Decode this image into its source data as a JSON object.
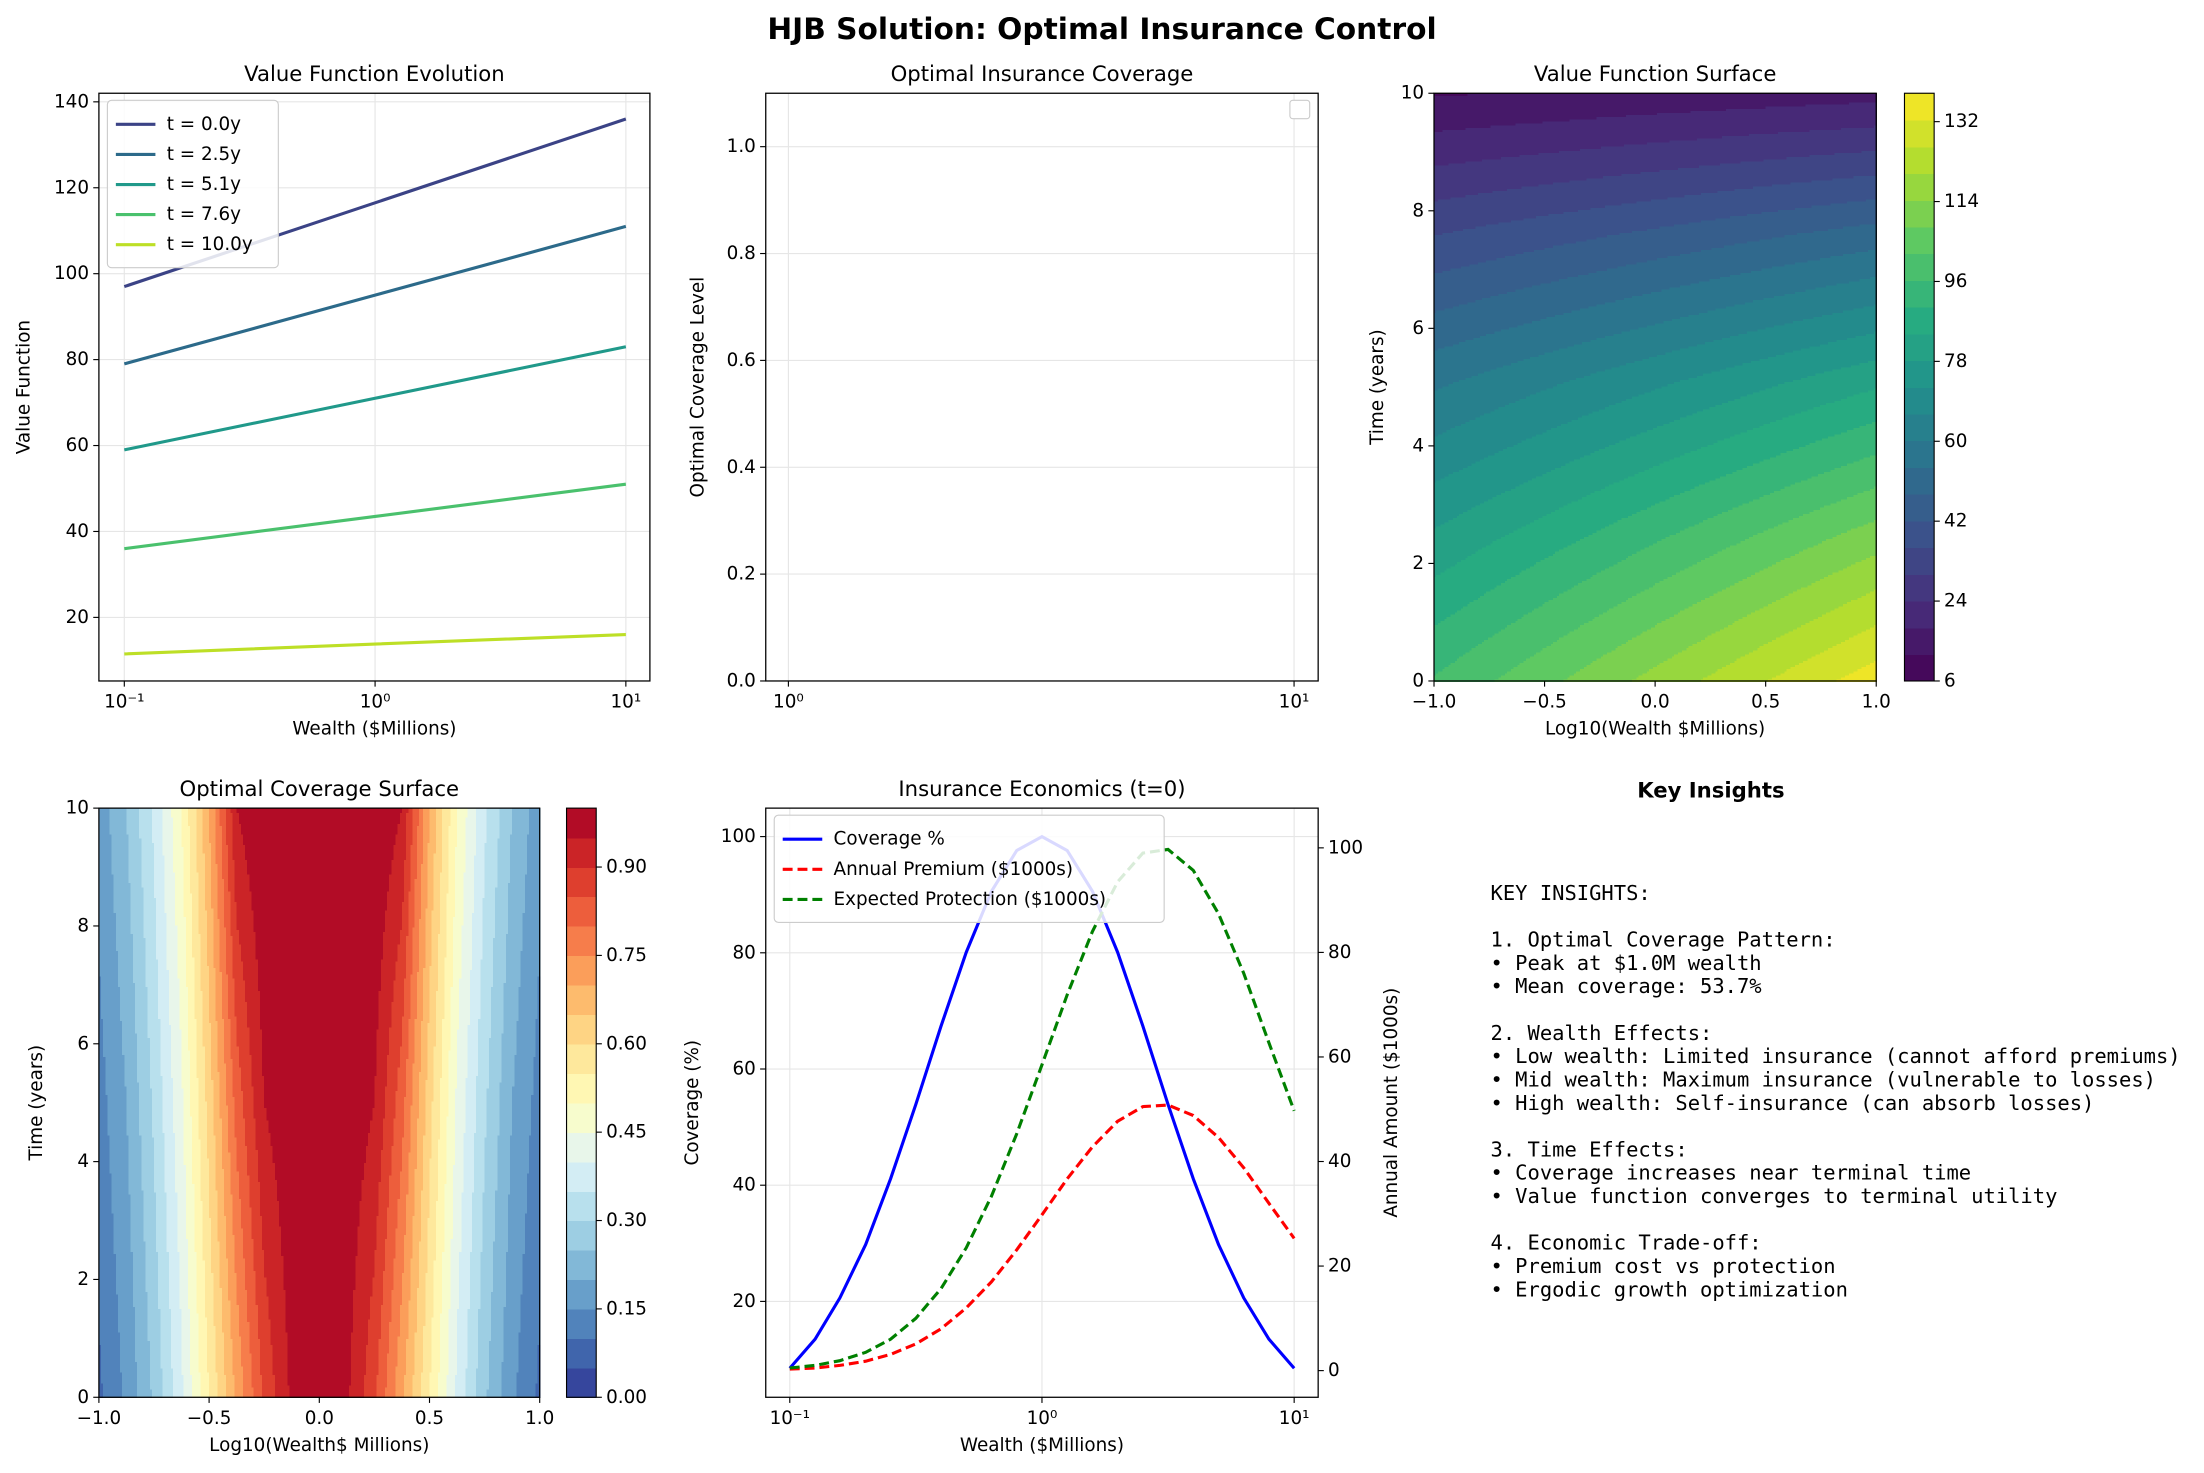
{
  "title": "HJB Solution: Optimal Insurance Control",
  "chart_data": [
    {
      "type": "line",
      "title": "Value Function Evolution",
      "xlabel": "Wealth ($Millions)",
      "ylabel": "Value Function",
      "xscale": "log",
      "grid": true,
      "legend": "upper left",
      "x": [
        0.1,
        1,
        10
      ],
      "series": [
        {
          "name": "t = 0.0y",
          "color": "#3b4386",
          "values": [
            97,
            116.5,
            136
          ]
        },
        {
          "name": "t = 2.5y",
          "color": "#2c6a8a",
          "values": [
            79,
            95,
            111
          ]
        },
        {
          "name": "t = 5.1y",
          "color": "#20998a",
          "values": [
            59,
            71,
            83
          ]
        },
        {
          "name": "t = 7.6y",
          "color": "#4ac16d",
          "values": [
            36,
            43.5,
            51
          ]
        },
        {
          "name": "t = 10.0y",
          "color": "#bddf26",
          "values": [
            11.5,
            13.8,
            16
          ]
        }
      ],
      "xlim": [
        0.0792,
        12.47
      ],
      "xticks": [
        {
          "value": 0.1,
          "label": "10⁻¹"
        },
        {
          "value": 1,
          "label": "10⁰"
        },
        {
          "value": 10,
          "label": "10¹"
        }
      ],
      "ylim": [
        5.2,
        142
      ],
      "yticks": [
        20,
        40,
        60,
        80,
        100,
        120,
        140
      ]
    },
    {
      "type": "line",
      "title": "Optimal Insurance Coverage",
      "ylabel": "Optimal Coverage Level",
      "xscale": "log",
      "grid": true,
      "legend": "upper right",
      "x": [],
      "series": [],
      "xlim": [
        0.902,
        11.16
      ],
      "xticks": [
        {
          "value": 1,
          "label": "10⁰"
        },
        {
          "value": 10,
          "label": "10¹"
        }
      ],
      "ylim": [
        0,
        1.1
      ],
      "yticks": [
        {
          "value": 0,
          "label": "0.0"
        },
        {
          "value": 0.2,
          "label": "0.2"
        },
        {
          "value": 0.4,
          "label": "0.4"
        },
        {
          "value": 0.6,
          "label": "0.6"
        },
        {
          "value": 0.8,
          "label": "0.8"
        },
        {
          "value": 1,
          "label": "1.0"
        }
      ]
    },
    {
      "type": "contour",
      "title": "Value Function Surface",
      "xlabel": "Log10(Wealth $Millions)",
      "ylabel": "Time (years)",
      "colormap": "viridis",
      "x": [
        -1,
        -0.5,
        0,
        0.5,
        1
      ],
      "y": [
        0,
        2.5,
        5.1,
        7.6,
        10
      ],
      "z": [
        [
          97,
          106.8,
          116.5,
          126.3,
          136
        ],
        [
          79,
          87,
          95,
          103,
          111
        ],
        [
          59,
          65,
          71,
          77,
          83
        ],
        [
          36,
          39.8,
          43.5,
          47.3,
          51
        ],
        [
          11.5,
          12.6,
          13.8,
          14.9,
          16
        ]
      ],
      "xlim": [
        -1,
        1
      ],
      "xticks": [
        {
          "value": -1,
          "label": "−1.0"
        },
        {
          "value": -0.5,
          "label": "−0.5"
        },
        {
          "value": 0,
          "label": "0.0"
        },
        {
          "value": 0.5,
          "label": "0.5"
        },
        {
          "value": 1,
          "label": "1.0"
        }
      ],
      "ylim": [
        0,
        10
      ],
      "yticks": [
        0,
        2,
        4,
        6,
        8,
        10
      ],
      "zlim": [
        6,
        138.4
      ],
      "cticks": [
        6,
        24,
        42,
        60,
        78,
        96,
        114,
        132
      ]
    },
    {
      "type": "contour",
      "title": "Optimal Coverage Surface",
      "xlabel": "Log10(Wealth$ Millions)",
      "ylabel": "Time (years)",
      "colormap": "RdYlBu_r",
      "x": [
        -1,
        -0.875,
        -0.75,
        -0.625,
        -0.5,
        -0.375,
        -0.25,
        -0.125,
        0,
        0.125,
        0.25,
        0.375,
        0.5,
        0.625,
        0.75,
        0.875,
        1
      ],
      "y": [
        0,
        5,
        10
      ],
      "z": [
        [
          0.09,
          0.16,
          0.26,
          0.39,
          0.55,
          0.71,
          0.86,
          0.96,
          1.0,
          0.96,
          0.86,
          0.71,
          0.55,
          0.39,
          0.26,
          0.16,
          0.09
        ],
        [
          0.13,
          0.2,
          0.31,
          0.44,
          0.62,
          0.82,
          0.95,
          0.99,
          1.0,
          0.99,
          0.95,
          0.82,
          0.62,
          0.44,
          0.31,
          0.2,
          0.13
        ],
        [
          0.17,
          0.25,
          0.36,
          0.5,
          0.7,
          0.95,
          1.0,
          1.0,
          1.0,
          1.0,
          1.0,
          0.95,
          0.7,
          0.5,
          0.36,
          0.25,
          0.17
        ]
      ],
      "xlim": [
        -1,
        1
      ],
      "xticks": [
        {
          "value": -1,
          "label": "−1.0"
        },
        {
          "value": -0.5,
          "label": "−0.5"
        },
        {
          "value": 0,
          "label": "0.0"
        },
        {
          "value": 0.5,
          "label": "0.5"
        },
        {
          "value": 1,
          "label": "1.0"
        }
      ],
      "ylim": [
        0,
        10
      ],
      "yticks": [
        0,
        2,
        4,
        6,
        8,
        10
      ],
      "zlim": [
        0,
        1.0
      ],
      "cticks": [
        {
          "value": 0,
          "label": "0.00"
        },
        {
          "value": 0.15,
          "label": "0.15"
        },
        {
          "value": 0.3,
          "label": "0.30"
        },
        {
          "value": 0.45,
          "label": "0.45"
        },
        {
          "value": 0.6,
          "label": "0.60"
        },
        {
          "value": 0.75,
          "label": "0.75"
        },
        {
          "value": 0.9,
          "label": "0.90"
        }
      ]
    },
    {
      "type": "line",
      "title": "Insurance Economics (t=0)",
      "xlabel": "Wealth ($Millions)",
      "ylabel": "Coverage (%)",
      "ylabel_color": "#0000ff",
      "y2label": "Annual Amount ($1000s)",
      "y2label_color": "#ff0000",
      "xscale": "log",
      "grid": true,
      "legend": "upper left",
      "x": [
        0.1,
        0.126,
        0.158,
        0.2,
        0.251,
        0.316,
        0.398,
        0.501,
        0.631,
        0.794,
        1,
        1.259,
        1.585,
        1.995,
        2.512,
        3.162,
        3.981,
        5.012,
        6.31,
        7.943,
        10
      ],
      "series": [
        {
          "name": "Coverage %",
          "color": "#0000ff",
          "linestyle": "solid",
          "values": [
            8.5,
            13.5,
            20.6,
            29.8,
            41.1,
            53.9,
            67.4,
            80.1,
            90.6,
            97.6,
            100,
            97.6,
            90.6,
            80.1,
            67.4,
            53.9,
            41.1,
            29.8,
            20.6,
            13.5,
            8.5
          ]
        },
        {
          "name": "Annual Premium ($1000s)",
          "color": "#ff0000",
          "linestyle": "dashed",
          "axis": "y2",
          "values": [
            0.3,
            0.5,
            1.0,
            1.8,
            3.1,
            5.1,
            8.0,
            12.0,
            17.0,
            23.1,
            29.8,
            36.7,
            42.8,
            47.7,
            50.5,
            50.8,
            48.8,
            44.6,
            38.8,
            32.0,
            25.3
          ]
        },
        {
          "name": "Expected Protection ($1000s)",
          "color": "#008000",
          "linestyle": "dashed",
          "axis": "y2",
          "values": [
            0.5,
            1.0,
            1.9,
            3.5,
            6.0,
            10.0,
            15.7,
            23.5,
            33.4,
            45.3,
            58.5,
            71.9,
            84.0,
            93.5,
            99.0,
            99.7,
            95.7,
            87.4,
            76.0,
            62.7,
            49.7
          ]
        }
      ],
      "xlim": [
        0.0803,
        12.45
      ],
      "xticks": [
        {
          "value": 0.1,
          "label": "10⁻¹"
        },
        {
          "value": 1,
          "label": "10⁰"
        },
        {
          "value": 10,
          "label": "10¹"
        }
      ],
      "ylim": [
        3.5,
        104.9
      ],
      "yticks": [
        20,
        40,
        60,
        80,
        100
      ],
      "y2lim": [
        -5.1,
        107.6
      ],
      "y2ticks": [
        0,
        20,
        40,
        60,
        80,
        100
      ]
    }
  ],
  "insights": {
    "title": "Key Insights",
    "blocks": [
      [
        "KEY INSIGHTS:"
      ],
      [
        "1. Optimal Coverage Pattern:",
        "• Peak at $1.0M wealth",
        "• Mean coverage: 53.7%"
      ],
      [
        "2. Wealth Effects:",
        "• Low wealth: Limited insurance (cannot afford premiums)",
        "• Mid wealth: Maximum insurance (vulnerable to losses)",
        "• High wealth: Self-insurance (can absorb losses)"
      ],
      [
        "3. Time Effects:",
        "• Coverage increases near terminal time",
        "• Value function converges to terminal utility"
      ],
      [
        "4. Economic Trade-off:",
        "• Premium cost vs protection",
        "• Ergodic growth optimization"
      ]
    ]
  }
}
